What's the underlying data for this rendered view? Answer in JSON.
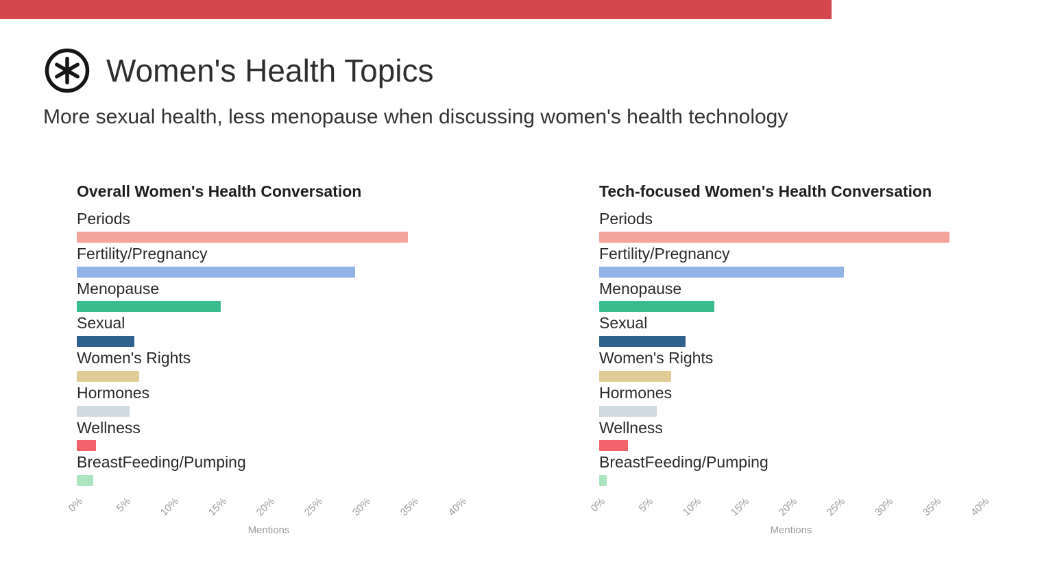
{
  "page": {
    "title": "Women's Health Topics",
    "subtitle": "More sexual health, less menopause when discussing women's health technology",
    "accent_color": "#D4474D",
    "logo_icon": "asterisk-in-circle"
  },
  "chart_data": [
    {
      "type": "bar",
      "orientation": "horizontal",
      "title": "Overall Women's Health Conversation",
      "xlabel": "Mentions",
      "xlim": [
        0,
        40
      ],
      "x_ticks": [
        "0%",
        "5%",
        "10%",
        "15%",
        "20%",
        "25%",
        "30%",
        "35%",
        "40%"
      ],
      "grid": false,
      "legend": "none",
      "categories": [
        "Periods",
        "Fertility/Pregnancy",
        "Menopause",
        "Sexual",
        "Women's Rights",
        "Hormones",
        "Wellness",
        "BreastFeeding/Pumping"
      ],
      "values": [
        34.5,
        29,
        15,
        6,
        6.5,
        5.5,
        2,
        1.7
      ],
      "bar_colors": [
        "#F4A49B",
        "#92B3E6",
        "#3ABD8E",
        "#2F618D",
        "#E2CC95",
        "#CED9E0",
        "#F2626B",
        "#ACE4C0"
      ]
    },
    {
      "type": "bar",
      "orientation": "horizontal",
      "title": "Tech-focused Women's Health Conversation",
      "xlabel": "Mentions",
      "xlim": [
        0,
        40
      ],
      "x_ticks": [
        "0%",
        "5%",
        "10%",
        "15%",
        "20%",
        "25%",
        "30%",
        "35%",
        "40%"
      ],
      "grid": false,
      "legend": "none",
      "categories": [
        "Periods",
        "Fertility/Pregnancy",
        "Menopause",
        "Sexual",
        "Women's Rights",
        "Hormones",
        "Wellness",
        "BreastFeeding/Pumping"
      ],
      "values": [
        36.5,
        25.5,
        12,
        9,
        7.5,
        6,
        3,
        0.8
      ],
      "bar_colors": [
        "#F4A49B",
        "#92B3E6",
        "#3ABD8E",
        "#2F618D",
        "#E2CC95",
        "#CED9E0",
        "#F2626B",
        "#ACE4C0"
      ]
    }
  ]
}
